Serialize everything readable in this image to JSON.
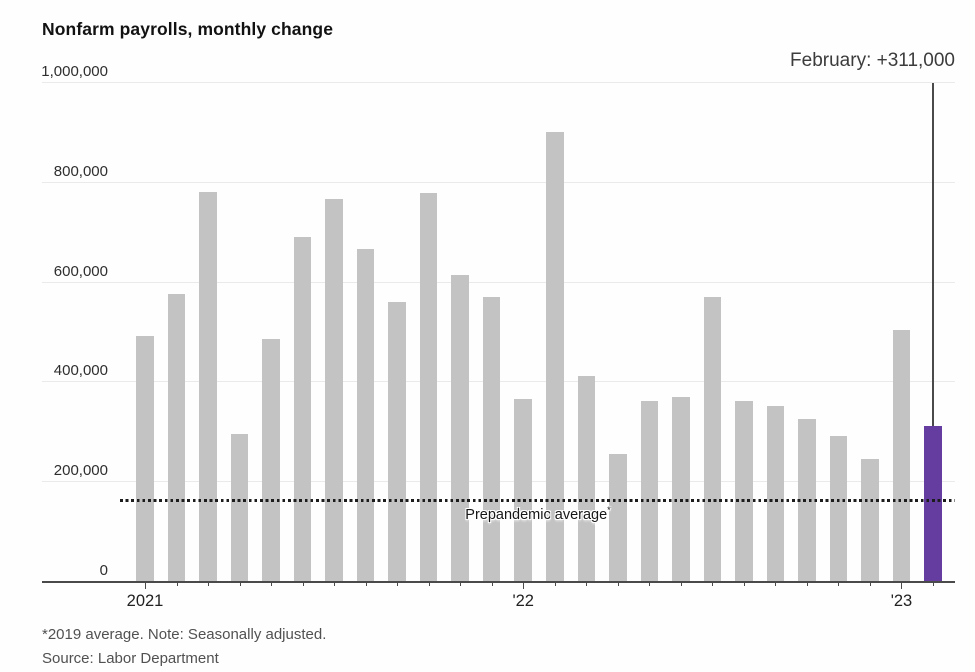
{
  "header": {
    "title": "Nonfarm payrolls, monthly change"
  },
  "annotation": {
    "label": "February: +311,000"
  },
  "chart_data": {
    "type": "bar",
    "title": "Nonfarm payrolls, monthly change",
    "categories": [
      "Jan 2021",
      "Feb 2021",
      "Mar 2021",
      "Apr 2021",
      "May 2021",
      "Jun 2021",
      "Jul 2021",
      "Aug 2021",
      "Sep 2021",
      "Oct 2021",
      "Nov 2021",
      "Dec 2021",
      "Jan 2022",
      "Feb 2022",
      "Mar 2022",
      "Apr 2022",
      "May 2022",
      "Jun 2022",
      "Jul 2022",
      "Aug 2022",
      "Sep 2022",
      "Oct 2022",
      "Nov 2022",
      "Dec 2022",
      "Jan 2023",
      "Feb 2023"
    ],
    "values": [
      490000,
      575000,
      780000,
      295000,
      485000,
      690000,
      765000,
      665000,
      560000,
      777000,
      614000,
      570000,
      365000,
      900000,
      410000,
      255000,
      360000,
      368000,
      570000,
      360000,
      350000,
      325000,
      290000,
      245000,
      504000,
      311000
    ],
    "highlight_index": 25,
    "highlight_annotation": "February: +311,000",
    "xlabel": "",
    "ylabel": "",
    "ylim": [
      0,
      1000000
    ],
    "grid": true,
    "yticks": [
      {
        "value": 1000000,
        "label": "1,000,000"
      },
      {
        "value": 800000,
        "label": "800,000"
      },
      {
        "value": 600000,
        "label": "600,000"
      },
      {
        "value": 400000,
        "label": "400,000"
      },
      {
        "value": 200000,
        "label": "200,000"
      },
      {
        "value": 0,
        "label": "0"
      }
    ],
    "xticks": [
      {
        "index": 0,
        "label": "2021"
      },
      {
        "index": 12,
        "label": "'22"
      },
      {
        "index": 24,
        "label": "'23"
      }
    ],
    "reference_line": {
      "value": 163000,
      "label_text": "Prepandemic average",
      "label_sup": "*"
    },
    "colors": {
      "bar": "#c3c3c3",
      "highlight": "#653da0",
      "gridline": "#eaeaea",
      "axis": "#4a4a4a",
      "reference_dots": "#1c1c1c"
    }
  },
  "footer": {
    "note": "*2019 average. Note: Seasonally adjusted.",
    "source": "Source: Labor Department"
  }
}
